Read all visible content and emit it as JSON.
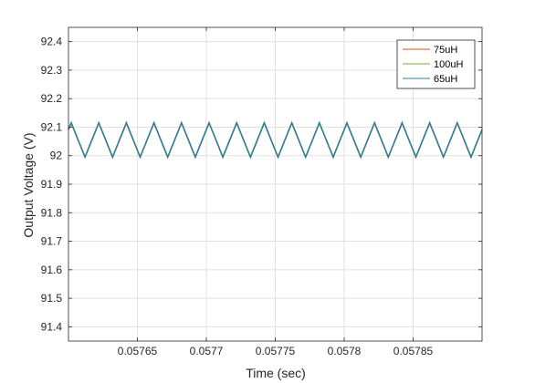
{
  "chart_data": {
    "type": "line",
    "title": "",
    "xlabel": "Time (sec)",
    "ylabel": "Output Voltage (V)",
    "xlim": [
      0.0576,
      0.0579
    ],
    "ylim": [
      91.35,
      92.45
    ],
    "x_ticks": [
      {
        "value": 0.05765,
        "label": "0.05765"
      },
      {
        "value": 0.0577,
        "label": "0.0577"
      },
      {
        "value": 0.05775,
        "label": "0.05775"
      },
      {
        "value": 0.0578,
        "label": "0.0578"
      },
      {
        "value": 0.05785,
        "label": "0.05785"
      }
    ],
    "y_ticks": [
      {
        "value": 91.4,
        "label": "91.4"
      },
      {
        "value": 91.5,
        "label": "91.5"
      },
      {
        "value": 91.6,
        "label": "91.6"
      },
      {
        "value": 91.7,
        "label": "91.7"
      },
      {
        "value": 91.8,
        "label": "91.8"
      },
      {
        "value": 91.9,
        "label": "91.9"
      },
      {
        "value": 92.0,
        "label": "92"
      },
      {
        "value": 92.1,
        "label": "92.1"
      },
      {
        "value": 92.2,
        "label": "92.2"
      },
      {
        "value": 92.3,
        "label": "92.3"
      },
      {
        "value": 92.4,
        "label": "92.4"
      }
    ],
    "grid": true,
    "legend_position": "top-right",
    "series": [
      {
        "name": "75uH",
        "color": "#d95319"
      },
      {
        "name": "100uH",
        "color": "#77ac30"
      },
      {
        "name": "65uH",
        "color": "#2e7fa0"
      }
    ],
    "waveform": {
      "shape": "triangle",
      "period": 2e-05,
      "first_min_x": 0.057612,
      "min": 91.995,
      "max": 92.115
    }
  }
}
